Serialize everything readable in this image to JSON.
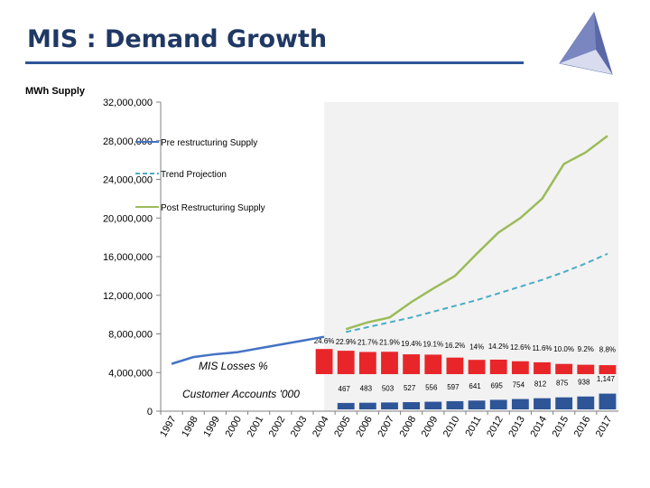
{
  "title": "MIS : Demand Growth",
  "colors": {
    "title": "#1F3864",
    "rule": "#2E5597",
    "pre": "#4472C4",
    "trend": "#4BACC6",
    "post": "#9BBB59",
    "loss_bar": "#E8262A",
    "account_bar": "#2E5597",
    "shade": "#F2F2F2"
  },
  "logo": "triangle-logo",
  "chart_data": {
    "type": "line",
    "ylabel": "MWh Supply",
    "ylim": [
      0,
      32000000
    ],
    "yticks": [
      "0",
      "4,000,000",
      "8,000,000",
      "12,000,000",
      "16,000,000",
      "20,000,000",
      "24,000,000",
      "28,000,000",
      "32,000,000"
    ],
    "x": [
      "1997",
      "1998",
      "1999",
      "2000",
      "2001",
      "2002",
      "2003",
      "2004",
      "2005",
      "2006",
      "2007",
      "2008",
      "2009",
      "2010",
      "2011",
      "2012",
      "2013",
      "2014",
      "2015",
      "2016",
      "2017"
    ],
    "shaded_from": "2005",
    "series": [
      {
        "name": "Pre restructuring Supply",
        "style": "solid",
        "values": [
          4900000,
          5600000,
          5900000,
          6100000,
          6500000,
          6900000,
          7300000,
          7700000,
          null,
          null,
          null,
          null,
          null,
          null,
          null,
          null,
          null,
          null,
          null,
          null,
          null
        ]
      },
      {
        "name": "Trend Projection",
        "style": "dashed",
        "values": [
          null,
          null,
          null,
          null,
          null,
          null,
          null,
          null,
          8200000,
          8700000,
          9200000,
          9700000,
          10300000,
          10900000,
          11500000,
          12200000,
          12900000,
          13600000,
          14400000,
          15300000,
          16300000
        ]
      },
      {
        "name": "Post Restructuring Supply",
        "style": "solid",
        "values": [
          null,
          null,
          null,
          null,
          null,
          null,
          null,
          null,
          8500000,
          9200000,
          9700000,
          11300000,
          12700000,
          14000000,
          16300000,
          18500000,
          20000000,
          22000000,
          25600000,
          26800000,
          28500000
        ]
      }
    ],
    "losses": {
      "label": "MIS Losses %",
      "labels": [
        "24.6%",
        "22.9%",
        "21.7%",
        "21.9%",
        "19.4%",
        "19.1%",
        "16.2%",
        "14%",
        "14.2%",
        "12.6%",
        "11.6%",
        "10.0%",
        "9.2%",
        "8.8%"
      ],
      "values": [
        24.6,
        22.9,
        21.7,
        21.9,
        19.4,
        19.1,
        16.2,
        14.0,
        14.2,
        12.6,
        11.6,
        10.0,
        9.2,
        8.8
      ]
    },
    "accounts": {
      "label": "Customer Accounts '000",
      "labels": [
        "467",
        "483",
        "503",
        "527",
        "556",
        "597",
        "641",
        "695",
        "754",
        "812",
        "875",
        "938",
        "1,147"
      ],
      "values": [
        467,
        483,
        503,
        527,
        556,
        597,
        641,
        695,
        754,
        812,
        875,
        938,
        1147
      ]
    }
  }
}
